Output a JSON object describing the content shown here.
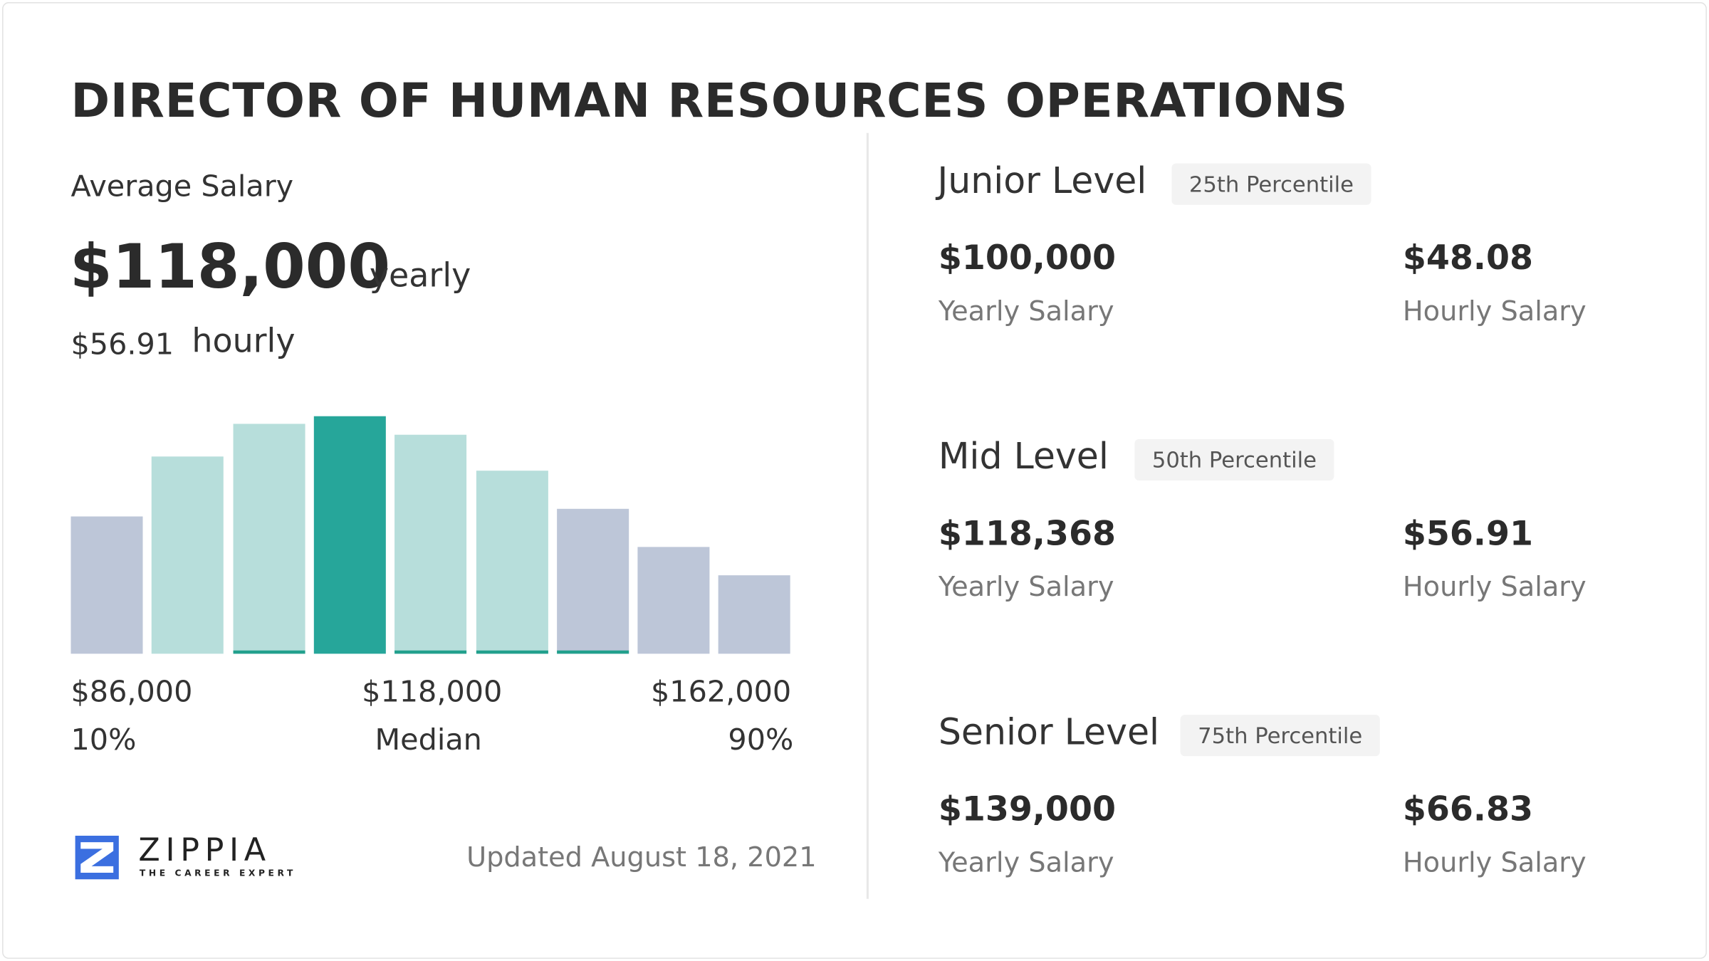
{
  "title": "DIRECTOR OF HUMAN RESOURCES OPERATIONS",
  "average": {
    "label": "Average Salary",
    "yearly": "$118,000",
    "yearly_unit": "yearly",
    "hourly": "$56.91",
    "hourly_unit": "hourly"
  },
  "chart_data": {
    "type": "bar",
    "values_relative_percent": [
      58,
      83,
      97,
      100,
      92,
      77,
      61,
      45,
      33
    ],
    "bar_styles": [
      "outer",
      "inner",
      "inner",
      "median",
      "inner",
      "inner",
      "outer",
      "outer",
      "outer"
    ],
    "underline": [
      false,
      false,
      true,
      false,
      true,
      true,
      true,
      false,
      false
    ],
    "colors": {
      "outer": "#bdc6d8",
      "inner": "#b7dedb",
      "median": "#26a69a",
      "underline": "#22a08d"
    },
    "axis_labels": [
      {
        "value": "$86,000",
        "caption": "10%"
      },
      {
        "value": "$118,000",
        "caption": "Median"
      },
      {
        "value": "$162,000",
        "caption": "90%"
      }
    ]
  },
  "brand": {
    "name": "ZIPPIA",
    "tagline": "THE CAREER EXPERT",
    "color": "#3b6fe0"
  },
  "updated": "Updated August 18, 2021",
  "levels": [
    {
      "name": "Junior Level",
      "badge": "25th Percentile",
      "yearly": "$100,000",
      "yearly_label": "Yearly Salary",
      "hourly": "$48.08",
      "hourly_label": "Hourly Salary"
    },
    {
      "name": "Mid Level",
      "badge": "50th Percentile",
      "yearly": "$118,368",
      "yearly_label": "Yearly Salary",
      "hourly": "$56.91",
      "hourly_label": "Hourly Salary"
    },
    {
      "name": "Senior Level",
      "badge": "75th Percentile",
      "yearly": "$139,000",
      "yearly_label": "Yearly Salary",
      "hourly": "$66.83",
      "hourly_label": "Hourly Salary"
    }
  ]
}
